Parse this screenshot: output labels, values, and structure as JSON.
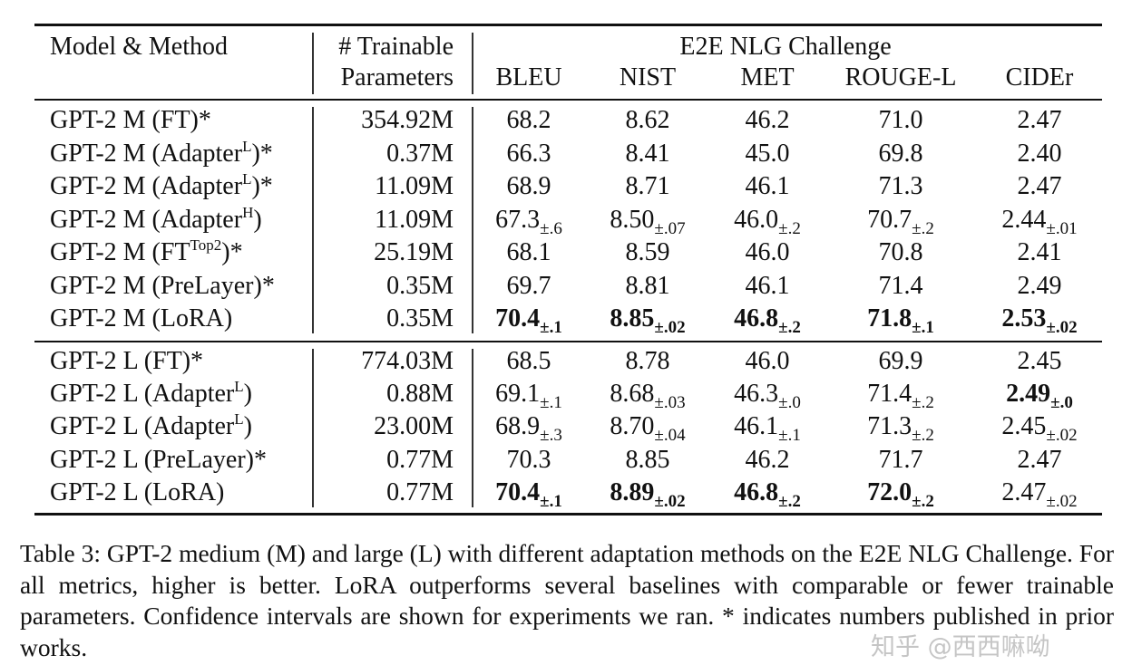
{
  "header": {
    "model": "Model & Method",
    "params_line1": "# Trainable",
    "params_line2": "Parameters",
    "group": "E2E NLG Challenge",
    "metrics": [
      "BLEU",
      "NIST",
      "MET",
      "ROUGE-L",
      "CIDEr"
    ]
  },
  "groups": [
    {
      "rows": [
        {
          "name": "GPT-2 M (FT)",
          "sup": "",
          "suffix": "*",
          "params": "354.92M",
          "cells": [
            {
              "v": "68.2"
            },
            {
              "v": "8.62"
            },
            {
              "v": "46.2"
            },
            {
              "v": "71.0"
            },
            {
              "v": "2.47"
            }
          ]
        },
        {
          "name": "GPT-2 M (Adapter",
          "sup": "L",
          "suffix": ")*",
          "params": "0.37M",
          "cells": [
            {
              "v": "66.3"
            },
            {
              "v": "8.41"
            },
            {
              "v": "45.0"
            },
            {
              "v": "69.8"
            },
            {
              "v": "2.40"
            }
          ]
        },
        {
          "name": "GPT-2 M (Adapter",
          "sup": "L",
          "suffix": ")*",
          "params": "11.09M",
          "cells": [
            {
              "v": "68.9"
            },
            {
              "v": "8.71"
            },
            {
              "v": "46.1"
            },
            {
              "v": "71.3"
            },
            {
              "v": "2.47"
            }
          ]
        },
        {
          "name": "GPT-2 M (Adapter",
          "sup": "H",
          "suffix": ")",
          "params": "11.09M",
          "cells": [
            {
              "v": "67.3",
              "sd": "±.6"
            },
            {
              "v": "8.50",
              "sd": "±.07"
            },
            {
              "v": "46.0",
              "sd": "±.2"
            },
            {
              "v": "70.7",
              "sd": "±.2"
            },
            {
              "v": "2.44",
              "sd": "±.01"
            }
          ]
        },
        {
          "name": "GPT-2 M (FT",
          "sup": "Top2",
          "suffix": ")*",
          "params": "25.19M",
          "cells": [
            {
              "v": "68.1"
            },
            {
              "v": "8.59"
            },
            {
              "v": "46.0"
            },
            {
              "v": "70.8"
            },
            {
              "v": "2.41"
            }
          ]
        },
        {
          "name": "GPT-2 M (PreLayer)",
          "sup": "",
          "suffix": "*",
          "params": "0.35M",
          "cells": [
            {
              "v": "69.7"
            },
            {
              "v": "8.81"
            },
            {
              "v": "46.1"
            },
            {
              "v": "71.4"
            },
            {
              "v": "2.49"
            }
          ]
        },
        {
          "name": "GPT-2 M (LoRA)",
          "sup": "",
          "suffix": "",
          "params": "0.35M",
          "cells": [
            {
              "v": "70.4",
              "sd": "±.1",
              "bold": true
            },
            {
              "v": "8.85",
              "sd": "±.02",
              "bold": true
            },
            {
              "v": "46.8",
              "sd": "±.2",
              "bold": true
            },
            {
              "v": "71.8",
              "sd": "±.1",
              "bold": true
            },
            {
              "v": "2.53",
              "sd": "±.02",
              "bold": true
            }
          ]
        }
      ]
    },
    {
      "rows": [
        {
          "name": "GPT-2 L (FT)",
          "sup": "",
          "suffix": "*",
          "params": "774.03M",
          "cells": [
            {
              "v": "68.5"
            },
            {
              "v": "8.78"
            },
            {
              "v": "46.0"
            },
            {
              "v": "69.9"
            },
            {
              "v": "2.45"
            }
          ]
        },
        {
          "name": "GPT-2 L (Adapter",
          "sup": "L",
          "suffix": ")",
          "params": "0.88M",
          "cells": [
            {
              "v": "69.1",
              "sd": "±.1"
            },
            {
              "v": "8.68",
              "sd": "±.03"
            },
            {
              "v": "46.3",
              "sd": "±.0"
            },
            {
              "v": "71.4",
              "sd": "±.2"
            },
            {
              "v": "2.49",
              "sd": "±.0",
              "bold": true
            }
          ]
        },
        {
          "name": "GPT-2 L (Adapter",
          "sup": "L",
          "suffix": ")",
          "params": "23.00M",
          "cells": [
            {
              "v": "68.9",
              "sd": "±.3"
            },
            {
              "v": "8.70",
              "sd": "±.04"
            },
            {
              "v": "46.1",
              "sd": "±.1"
            },
            {
              "v": "71.3",
              "sd": "±.2"
            },
            {
              "v": "2.45",
              "sd": "±.02"
            }
          ]
        },
        {
          "name": "GPT-2 L (PreLayer)",
          "sup": "",
          "suffix": "*",
          "params": "0.77M",
          "cells": [
            {
              "v": "70.3"
            },
            {
              "v": "8.85"
            },
            {
              "v": "46.2"
            },
            {
              "v": "71.7"
            },
            {
              "v": "2.47"
            }
          ]
        },
        {
          "name": "GPT-2 L (LoRA)",
          "sup": "",
          "suffix": "",
          "params": "0.77M",
          "cells": [
            {
              "v": "70.4",
              "sd": "±.1",
              "bold": true
            },
            {
              "v": "8.89",
              "sd": "±.02",
              "bold": true
            },
            {
              "v": "46.8",
              "sd": "±.2",
              "bold": true
            },
            {
              "v": "72.0",
              "sd": "±.2",
              "bold": true
            },
            {
              "v": "2.47",
              "sd": "±.02"
            }
          ]
        }
      ]
    }
  ],
  "caption": "Table 3: GPT-2 medium (M) and large (L) with different adaptation methods on the E2E NLG Challenge. For all metrics, higher is better. LoRA outperforms several baselines with comparable or fewer trainable parameters. Confidence intervals are shown for experiments we ran. * indicates numbers published in prior works.",
  "watermark": "知乎 @西西嘛呦"
}
